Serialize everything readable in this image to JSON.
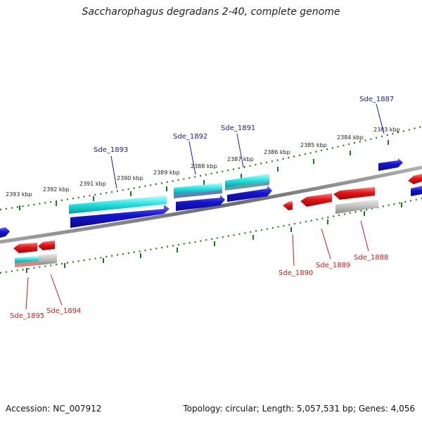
{
  "title": "Saccharophagus degradans 2-40, complete genome",
  "footer": {
    "accession": "Accession: NC_007912",
    "summary": "Topology: circular; Length: 5,057,531 bp; Genes: 4,056"
  },
  "kbp_labels": [
    "2393 kbp",
    "2392 kbp",
    "2391 kbp",
    "2390 kbp",
    "2389 kbp",
    "2388 kbp",
    "2387 kbp",
    "2386 kbp",
    "2385 kbp",
    "2384 kbp",
    "2383 kbp"
  ],
  "gene_labels_top": [
    "Sde_1893",
    "Sde_1892",
    "Sde_1891",
    "Sde_1887"
  ],
  "gene_labels_bottom": [
    "Sde_1895",
    "Sde_1894",
    "Sde_1890",
    "Sde_1889",
    "Sde_1888"
  ],
  "colors": {
    "forward_gene": "#1414d2",
    "reverse_gene": "#e61414",
    "cds_cyan": "#20d6d6",
    "gray_feature": "#bdbdbd",
    "tick_green": "#1b7a1b",
    "backbone": "#7a7a7a"
  }
}
